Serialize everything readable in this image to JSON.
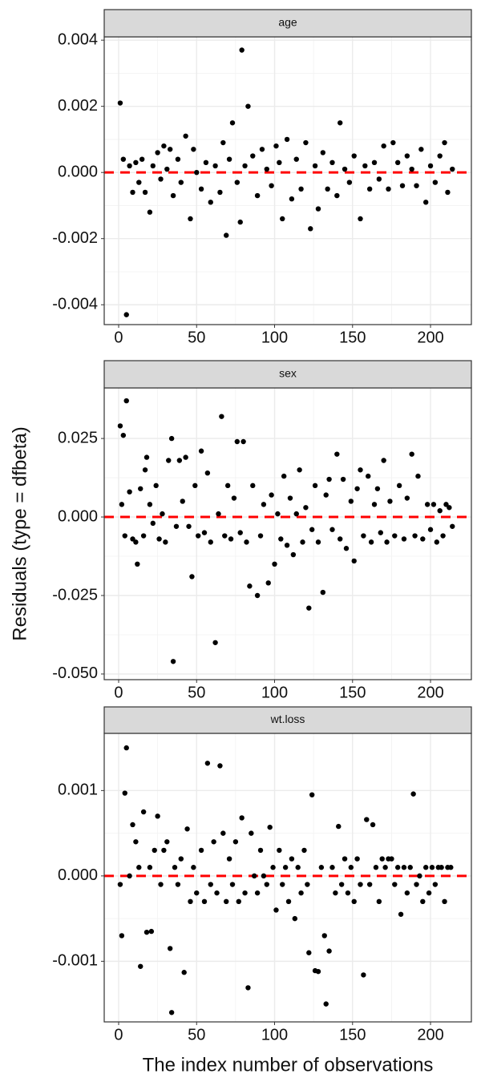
{
  "chart_data": [
    {
      "type": "scatter",
      "title": "age",
      "color": "#000000",
      "grid": true,
      "hline": 0,
      "hline_color": "#ff0000",
      "xlim": [
        -9.25,
        226.2
      ],
      "xticks": [
        0,
        50,
        100,
        150,
        200
      ],
      "ylim": [
        -0.0046,
        0.0041
      ],
      "yticks": [
        {
          "value": -0.004,
          "label": "-0.004"
        },
        {
          "value": -0.002,
          "label": "-0.002"
        },
        {
          "value": 0,
          "label": "0.000"
        },
        {
          "value": 0.002,
          "label": "0.002"
        },
        {
          "value": 0.004,
          "label": "0.004"
        }
      ],
      "x": [
        1,
        3,
        5,
        7,
        9,
        11,
        13,
        15,
        17,
        20,
        22,
        25,
        27,
        29,
        31,
        33,
        35,
        38,
        40,
        43,
        46,
        48,
        50,
        53,
        56,
        59,
        62,
        65,
        67,
        69,
        71,
        73,
        76,
        78,
        79,
        81,
        83,
        86,
        89,
        92,
        95,
        98,
        101,
        103,
        105,
        108,
        111,
        114,
        117,
        120,
        123,
        126,
        128,
        131,
        134,
        137,
        140,
        142,
        145,
        148,
        151,
        155,
        158,
        161,
        164,
        167,
        170,
        173,
        176,
        179,
        182,
        185,
        188,
        191,
        194,
        197,
        200,
        203,
        206,
        209,
        211,
        214
      ],
      "values": [
        0.0021,
        0.0004,
        -0.0043,
        0.0002,
        -0.0006,
        0.0003,
        -0.0003,
        0.0004,
        -0.0006,
        -0.0012,
        0.0002,
        0.0006,
        -0.0002,
        0.0008,
        0.0001,
        0.0007,
        -0.0007,
        0.0004,
        -0.0003,
        0.0011,
        -0.0014,
        0.0007,
        0.0,
        -0.0005,
        0.0003,
        -0.0009,
        0.0002,
        -0.0006,
        0.0009,
        -0.0019,
        0.0004,
        0.0015,
        -0.0003,
        -0.0015,
        0.0037,
        0.0002,
        0.002,
        0.0005,
        -0.0007,
        0.0007,
        0.0001,
        -0.0004,
        0.0008,
        0.0003,
        -0.0014,
        0.001,
        -0.0008,
        0.0004,
        -0.0005,
        0.0009,
        -0.0017,
        0.0002,
        -0.0011,
        0.0006,
        -0.0005,
        0.0003,
        -0.0007,
        0.0015,
        0.0001,
        -0.0003,
        0.0005,
        -0.0014,
        0.0002,
        -0.0005,
        0.0003,
        -0.0002,
        0.0008,
        -0.0005,
        0.0009,
        0.0003,
        -0.0004,
        0.0005,
        0.0001,
        -0.0004,
        0.0007,
        -0.0009,
        0.0002,
        -0.0003,
        0.0005,
        0.0009,
        -0.0006,
        0.0001
      ]
    },
    {
      "type": "scatter",
      "title": "sex",
      "ylabel": "Residuals (type = dfbeta)",
      "color": "#000000",
      "grid": true,
      "hline": 0,
      "hline_color": "#ff0000",
      "xlim": [
        -9.25,
        226.2
      ],
      "xticks": [
        0,
        50,
        100,
        150,
        200
      ],
      "ylim": [
        -0.0518,
        0.0411
      ],
      "yticks": [
        {
          "value": -0.05,
          "label": "-0.050"
        },
        {
          "value": -0.025,
          "label": "-0.025"
        },
        {
          "value": 0,
          "label": "0.000"
        },
        {
          "value": 0.025,
          "label": "0.025"
        }
      ],
      "x": [
        1,
        2,
        3,
        4,
        5,
        7,
        9,
        11,
        12,
        14,
        16,
        17,
        18,
        20,
        22,
        24,
        26,
        28,
        30,
        32,
        34,
        35,
        37,
        39,
        41,
        43,
        45,
        47,
        49,
        51,
        53,
        55,
        57,
        59,
        62,
        64,
        66,
        68,
        70,
        72,
        74,
        76,
        78,
        80,
        82,
        84,
        86,
        89,
        91,
        93,
        96,
        98,
        100,
        102,
        104,
        106,
        108,
        110,
        112,
        114,
        116,
        118,
        120,
        122,
        124,
        126,
        128,
        131,
        133,
        135,
        137,
        140,
        142,
        144,
        146,
        149,
        151,
        153,
        155,
        157,
        160,
        162,
        164,
        166,
        168,
        170,
        172,
        174,
        177,
        180,
        183,
        185,
        188,
        190,
        192,
        195,
        198,
        200,
        202,
        204,
        206,
        208,
        210,
        212,
        214
      ],
      "values": [
        0.029,
        0.004,
        0.026,
        -0.006,
        0.037,
        0.008,
        -0.007,
        -0.008,
        -0.015,
        0.009,
        -0.006,
        0.015,
        0.019,
        0.004,
        -0.002,
        0.01,
        -0.007,
        0.001,
        -0.008,
        0.018,
        0.025,
        -0.046,
        -0.003,
        0.018,
        0.005,
        0.019,
        -0.003,
        -0.019,
        0.01,
        -0.006,
        0.021,
        -0.005,
        0.014,
        -0.008,
        -0.04,
        0.001,
        0.032,
        -0.006,
        0.01,
        -0.007,
        0.006,
        0.024,
        -0.005,
        0.024,
        -0.008,
        -0.022,
        0.01,
        -0.025,
        -0.006,
        0.004,
        -0.021,
        0.007,
        -0.015,
        0.001,
        -0.007,
        0.013,
        -0.009,
        0.006,
        -0.012,
        0.001,
        0.015,
        -0.008,
        0.003,
        -0.029,
        -0.004,
        0.01,
        -0.008,
        -0.024,
        0.007,
        0.012,
        -0.004,
        0.02,
        -0.007,
        0.012,
        -0.01,
        0.005,
        -0.014,
        0.009,
        0.015,
        -0.006,
        0.013,
        -0.008,
        0.004,
        0.009,
        -0.005,
        0.018,
        -0.008,
        0.005,
        -0.006,
        0.01,
        -0.007,
        0.006,
        0.02,
        -0.006,
        0.013,
        -0.007,
        0.004,
        -0.004,
        0.004,
        -0.008,
        0.002,
        -0.006,
        0.004,
        0.003,
        -0.003
      ]
    },
    {
      "type": "scatter",
      "title": "wt.loss",
      "xlabel": "The index number of observations",
      "color": "#000000",
      "grid": true,
      "hline": 0,
      "hline_color": "#ff0000",
      "xlim": [
        -9.25,
        226.2
      ],
      "xticks": [
        0,
        50,
        100,
        150,
        200
      ],
      "ylim": [
        -0.00171,
        0.00167
      ],
      "yticks": [
        {
          "value": -0.001,
          "label": "-0.001"
        },
        {
          "value": 0,
          "label": "0.000"
        },
        {
          "value": 0.001,
          "label": "0.001"
        }
      ],
      "x": [
        1,
        2,
        4,
        5,
        7,
        9,
        11,
        13,
        14,
        16,
        18,
        20,
        21,
        23,
        25,
        27,
        29,
        31,
        33,
        34,
        36,
        38,
        40,
        42,
        44,
        46,
        48,
        50,
        53,
        55,
        57,
        59,
        61,
        63,
        65,
        67,
        69,
        71,
        73,
        75,
        77,
        79,
        81,
        83,
        85,
        87,
        89,
        91,
        93,
        95,
        97,
        99,
        101,
        103,
        105,
        107,
        109,
        111,
        113,
        115,
        117,
        119,
        121,
        122,
        124,
        126,
        128,
        130,
        132,
        133,
        135,
        137,
        139,
        141,
        143,
        145,
        147,
        149,
        151,
        153,
        155,
        157,
        159,
        161,
        163,
        165,
        167,
        169,
        171,
        173,
        175,
        177,
        179,
        181,
        183,
        185,
        187,
        189,
        191,
        193,
        195,
        197,
        199,
        201,
        203,
        205,
        207,
        209,
        211,
        213
      ],
      "values": [
        -0.0001,
        -0.0007,
        0.00097,
        0.0015,
        0.0,
        0.0006,
        0.0004,
        0.0001,
        -0.00106,
        0.00075,
        -0.00066,
        0.0001,
        -0.00065,
        0.0003,
        0.0007,
        -0.0001,
        0.0003,
        0.0004,
        -0.00085,
        -0.0016,
        0.0001,
        -0.0001,
        0.0002,
        -0.00113,
        0.00055,
        -0.0003,
        0.0001,
        -0.0002,
        0.0003,
        -0.0003,
        0.00132,
        -0.0001,
        0.0004,
        -0.0002,
        0.00129,
        0.0005,
        -0.0003,
        0.0002,
        -0.0001,
        0.0004,
        -0.0003,
        0.00068,
        -0.0002,
        -0.00131,
        0.0005,
        0.0,
        -0.0002,
        0.0003,
        0.0,
        -0.0001,
        0.00057,
        0.0001,
        -0.0004,
        0.0003,
        -0.0001,
        0.0001,
        -0.0003,
        0.0002,
        -0.0005,
        0.0001,
        -0.0002,
        0.0003,
        -0.0001,
        -0.0009,
        0.00095,
        -0.00111,
        -0.00112,
        0.0001,
        -0.0007,
        -0.0015,
        -0.00088,
        0.0001,
        -0.0002,
        0.00058,
        -0.0001,
        0.0002,
        -0.0002,
        0.0001,
        -0.0003,
        0.0002,
        -0.0001,
        -0.00116,
        0.00066,
        -0.0001,
        0.0006,
        0.0001,
        -0.0003,
        0.0002,
        0.0001,
        0.0002,
        0.0002,
        -0.0001,
        0.0001,
        -0.00045,
        0.0001,
        -0.0002,
        0.0001,
        0.00096,
        -0.0001,
        0.0,
        -0.0003,
        0.0001,
        -0.0002,
        0.0001,
        -0.0001,
        0.0001,
        0.0001,
        -0.0003,
        0.0001,
        0.0001
      ]
    }
  ]
}
